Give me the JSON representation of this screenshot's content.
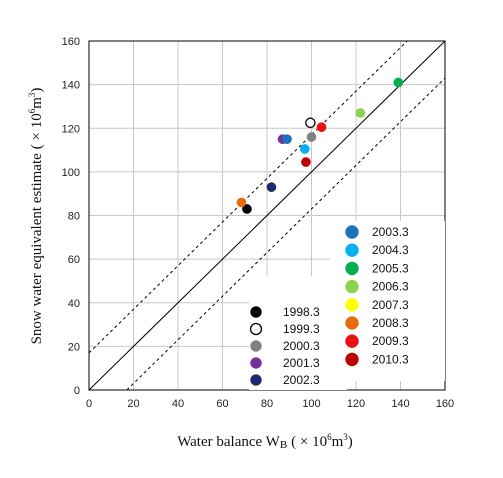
{
  "chart_data": {
    "type": "scatter",
    "xlabel": "Water balance W",
    "xlabel_sub": "B",
    "xlabel_units": "( × 10",
    "xlabel_exp": "6",
    "xlabel_unit_end": "m",
    "xlabel_unit_exp": "3",
    "xlabel_close": ")",
    "ylabel": "Snow water equivalent estimate",
    "ylabel_units": "( × 10",
    "ylabel_exp": "6",
    "ylabel_unit_end": "m",
    "ylabel_unit_exp": "3",
    "ylabel_close": ")",
    "xlim": [
      0,
      160
    ],
    "ylim": [
      0,
      160
    ],
    "xticks": [
      0,
      20,
      40,
      60,
      80,
      100,
      120,
      140,
      160
    ],
    "yticks": [
      0,
      20,
      40,
      60,
      80,
      100,
      120,
      140,
      160
    ],
    "xtick_labels": [
      "0",
      "20",
      "40",
      "60",
      "80",
      "100",
      "120",
      "140",
      "160"
    ],
    "ytick_labels": [
      "0",
      "20",
      "40",
      "60",
      "80",
      "100",
      "120",
      "140",
      "160"
    ],
    "grid": true,
    "reference_lines": [
      {
        "kind": "1:1",
        "offset": 0,
        "style": "solid"
      },
      {
        "kind": "1:1",
        "offset": 17,
        "style": "dashed"
      },
      {
        "kind": "1:1",
        "offset": -17,
        "style": "dashed"
      }
    ],
    "series": [
      {
        "name": "1998.3",
        "color": "#000000",
        "hollow": false,
        "points": [
          [
            71,
            83
          ]
        ]
      },
      {
        "name": "1999.3",
        "color": "#000000",
        "hollow": true,
        "points": [
          [
            99.5,
            122.5
          ]
        ]
      },
      {
        "name": "2000.3",
        "color": "#808080",
        "hollow": false,
        "points": [
          [
            100,
            116
          ]
        ]
      },
      {
        "name": "2001.3",
        "color": "#7030a0",
        "hollow": false,
        "points": [
          [
            87,
            115
          ]
        ]
      },
      {
        "name": "2002.3",
        "color": "#1f2a6b",
        "hollow": false,
        "points": [
          [
            82,
            93
          ]
        ]
      },
      {
        "name": "2003.3",
        "color": "#1f6fbf",
        "hollow": false,
        "points": [
          [
            89,
            115
          ]
        ]
      },
      {
        "name": "2004.3",
        "color": "#00b0f0",
        "hollow": false,
        "points": [
          [
            97,
            110.5
          ]
        ]
      },
      {
        "name": "2005.3",
        "color": "#00b050",
        "hollow": false,
        "points": [
          [
            139,
            141
          ]
        ]
      },
      {
        "name": "2006.3",
        "color": "#92d050",
        "hollow": false,
        "points": [
          [
            122,
            127
          ]
        ]
      },
      {
        "name": "2007.3",
        "color": "#ffff00",
        "hollow": false,
        "points": []
      },
      {
        "name": "2008.3",
        "color": "#e46c0a",
        "hollow": false,
        "points": [
          [
            68.5,
            86
          ]
        ]
      },
      {
        "name": "2009.3",
        "color": "#ee1111",
        "hollow": false,
        "points": [
          [
            104.5,
            120.5
          ]
        ]
      },
      {
        "name": "2010.3",
        "color": "#c00000",
        "hollow": false,
        "points": [
          [
            97.5,
            104.5
          ]
        ]
      }
    ]
  }
}
